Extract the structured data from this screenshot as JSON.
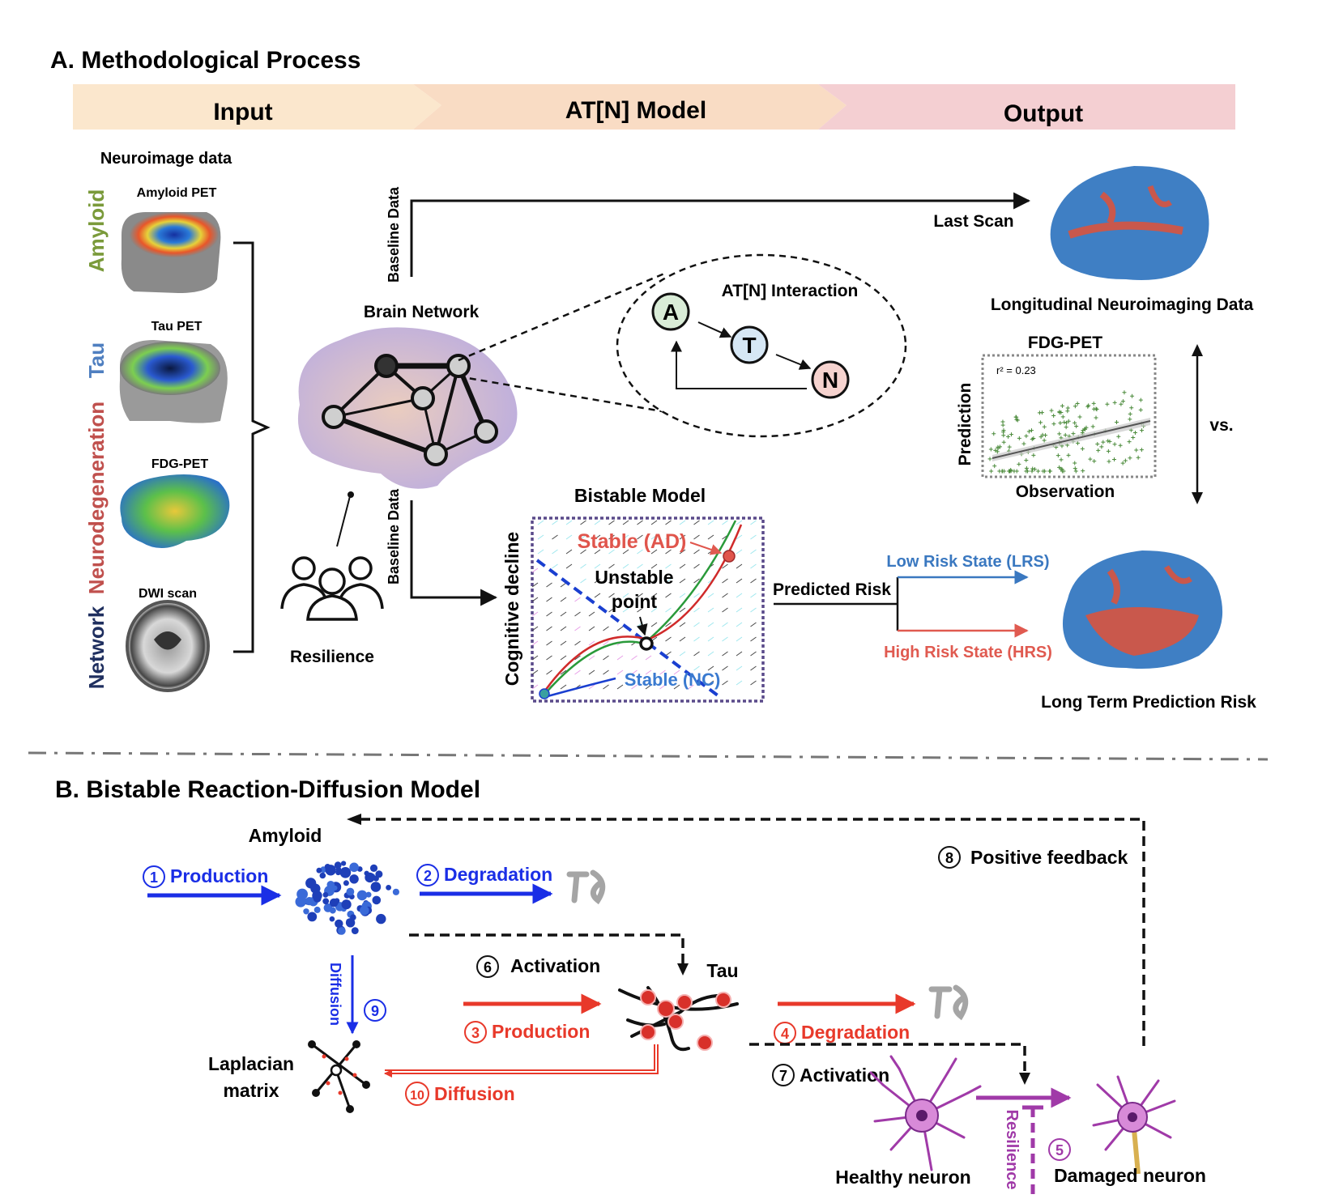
{
  "section_a": {
    "title": "A. Methodological Process",
    "band": {
      "input": "Input",
      "model": "AT[N] Model",
      "output": "Output"
    },
    "neuroimage_label": "Neuroimage data",
    "modalities": [
      {
        "side_label": "Amyloid",
        "scan_label": "Amyloid PET",
        "color": "#7a9a3a"
      },
      {
        "side_label": "Tau",
        "scan_label": "Tau PET",
        "color": "#4f7fc0"
      },
      {
        "side_label": "Neurodegeneration",
        "scan_label": "FDG-PET",
        "color": "#c0504d"
      },
      {
        "side_label": "Network",
        "scan_label": "DWI scan",
        "color": "#1f2f5f"
      }
    ],
    "brain_network_label": "Brain Network",
    "resilience_label": "Resilience",
    "baseline_top": "Baseline Data",
    "baseline_bottom": "Baseline Data",
    "last_scan": "Last Scan",
    "atn": {
      "title": "AT[N] Interaction",
      "a": "A",
      "t": "T",
      "n": "N"
    },
    "longitudinal_label": "Longitudinal Neuroimaging Data",
    "fdg_title": "FDG-PET",
    "scatter": {
      "r2": "r² = 0.23",
      "ylabel": "Prediction",
      "xlabel": "Observation"
    },
    "vs_label": "vs.",
    "bistable": {
      "title": "Bistable Model",
      "ylabel": "Cognitive decline",
      "stable_ad": "Stable (AD)",
      "unstable_1": "Unstable",
      "unstable_2": "point",
      "stable_nc": "Stable (NC)"
    },
    "predicted_risk": "Predicted Risk",
    "lrs": "Low Risk State (LRS)",
    "hrs": "High Risk State (HRS)",
    "long_term": "Long Term Prediction Risk"
  },
  "section_b": {
    "title": "B. Bistable Reaction-Diffusion Model",
    "amyloid": "Amyloid",
    "tau": "Tau",
    "laplacian_1": "Laplacian",
    "laplacian_2": "matrix",
    "healthy": "Healthy neuron",
    "damaged": "Damaged neuron",
    "steps": {
      "s1_num": "1",
      "s1": "Production",
      "s2_num": "2",
      "s2": "Degradation",
      "s3_num": "3",
      "s3": "Production",
      "s4_num": "4",
      "s4": "Degradation",
      "s5_num": "5",
      "s5": "Resilience",
      "s6_num": "6",
      "s6": "Activation",
      "s7_num": "7",
      "s7": "Activation",
      "s8_num": "8",
      "s8": "Positive feedback",
      "s9_num": "9",
      "s9": "Diffusion",
      "s10_num": "10",
      "s10": "Diffusion"
    }
  },
  "colors": {
    "blue": "#1a2ee6",
    "red": "#e8392a",
    "purple": "#a03aa8",
    "lrs": "#3a78c0",
    "hrs": "#e05a50",
    "stable_ad": "#e0554c",
    "stable_nc": "#3a7ad0"
  }
}
